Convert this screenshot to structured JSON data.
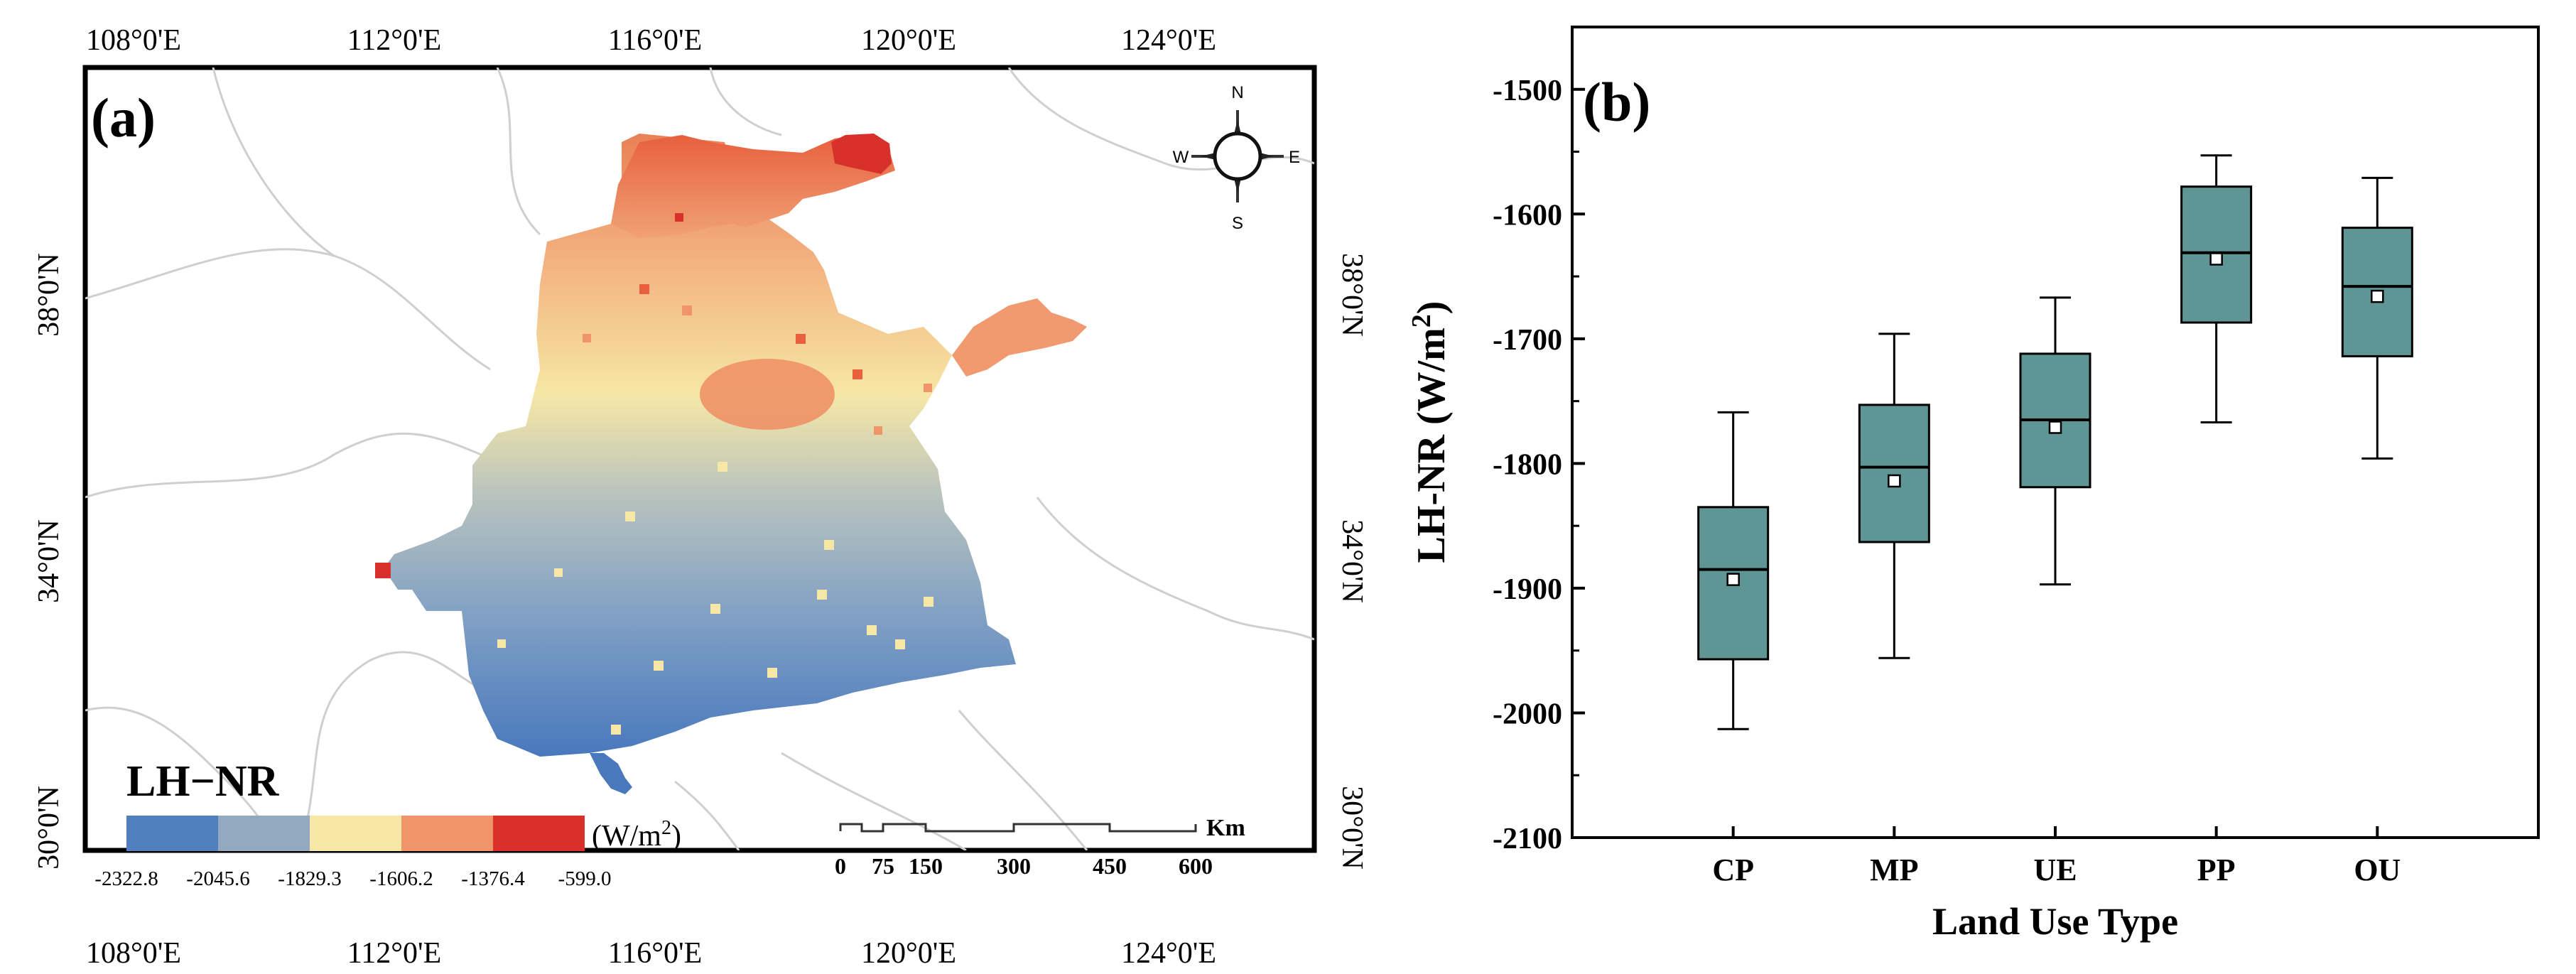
{
  "panel_a": {
    "label": "(a)",
    "title": "LH−NR",
    "unit_text": "(W/m",
    "unit_sup": "2",
    "unit_close": ")",
    "lon_labels": [
      "108°0'E",
      "112°0'E",
      "116°0'E",
      "120°0'E",
      "124°0'E"
    ],
    "lat_labels": [
      "38°0'N",
      "34°0'N",
      "30°0'N"
    ],
    "legend_values": [
      "-2322.8",
      "-2045.6",
      "-1829.3",
      "-1606.2",
      "-1376.4",
      "-599.0"
    ],
    "legend_colors": [
      "#4f7fbd",
      "#93a9bf",
      "#f6e7a6",
      "#f0946a",
      "#d8302a"
    ],
    "compass": {
      "n": "N",
      "s": "S",
      "e": "E",
      "w": "W"
    },
    "scale": {
      "unit": "Km",
      "ticks": [
        "0",
        "75",
        "150",
        "300",
        "450",
        "600"
      ]
    }
  },
  "chart_data": {
    "type": "box",
    "panel_label": "(b)",
    "title": "",
    "xlabel": "Land Use Type",
    "ylabel": "LH-NR (W/m²)",
    "ylabel_main": "LH-NR (W/m",
    "ylabel_sup": "2",
    "ylabel_close": ")",
    "ylim": [
      -2100,
      -1450
    ],
    "yticks": [
      -1500,
      -1600,
      -1700,
      -1800,
      -1900,
      -2000,
      -2100
    ],
    "categories": [
      "CP",
      "MP",
      "UE",
      "PP",
      "OU"
    ],
    "box_color": "#5f9595",
    "series": [
      {
        "name": "CP",
        "whisker_low": -2013,
        "q1": -1957,
        "median": -1885,
        "q3": -1835,
        "whisker_high": -1759,
        "mean": -1893
      },
      {
        "name": "MP",
        "whisker_low": -1956,
        "q1": -1863,
        "median": -1803,
        "q3": -1753,
        "whisker_high": -1696,
        "mean": -1814
      },
      {
        "name": "UE",
        "whisker_low": -1897,
        "q1": -1819,
        "median": -1765,
        "q3": -1712,
        "whisker_high": -1667,
        "mean": -1771
      },
      {
        "name": "PP",
        "whisker_low": -1767,
        "q1": -1687,
        "median": -1631,
        "q3": -1578,
        "whisker_high": -1553,
        "mean": -1636
      },
      {
        "name": "OU",
        "whisker_low": -1796,
        "q1": -1714,
        "median": -1658,
        "q3": -1611,
        "whisker_high": -1571,
        "mean": -1666
      }
    ]
  }
}
